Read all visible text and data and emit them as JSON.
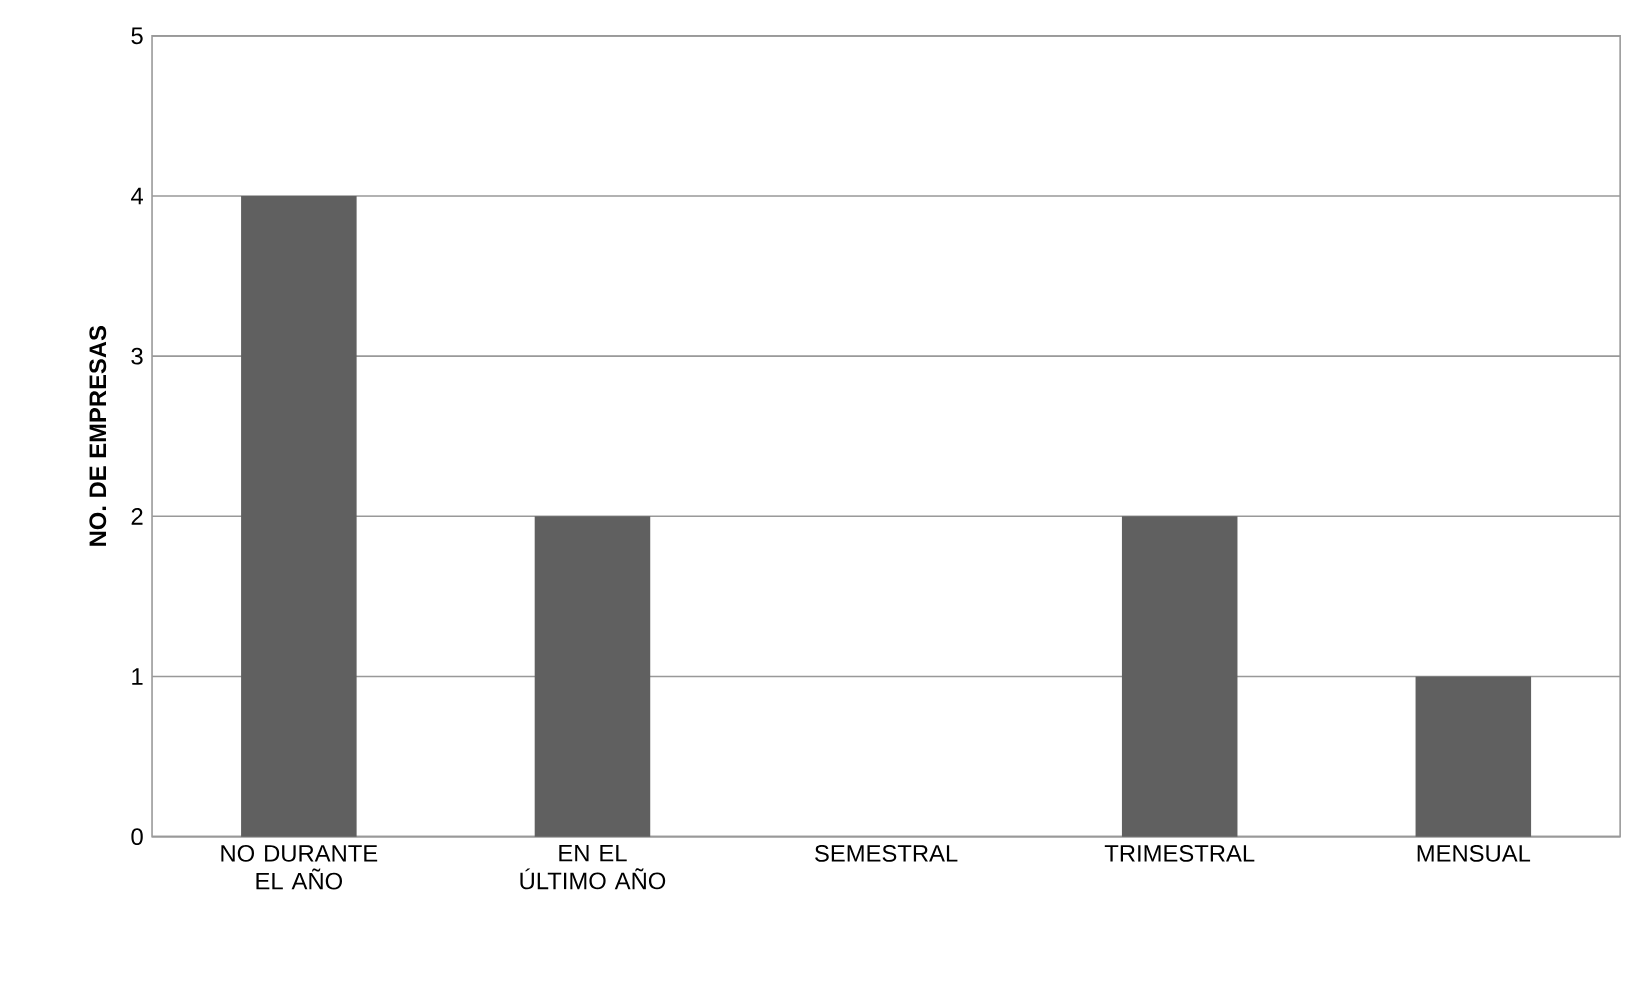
{
  "chart_data": {
    "type": "bar",
    "ylabel": "NO. DE EMPRESAS",
    "categories": [
      "NO DURANTE EL AÑO",
      "EN EL ÚLTIMO AÑO",
      "SEMESTRAL",
      "TRIMESTRAL",
      "MENSUAL"
    ],
    "values": [
      4,
      2,
      0,
      2,
      1
    ],
    "color": "#606060",
    "ylim": [
      0,
      5
    ],
    "yticks": [
      0,
      1,
      2,
      3,
      4,
      5
    ],
    "grid": "y"
  }
}
